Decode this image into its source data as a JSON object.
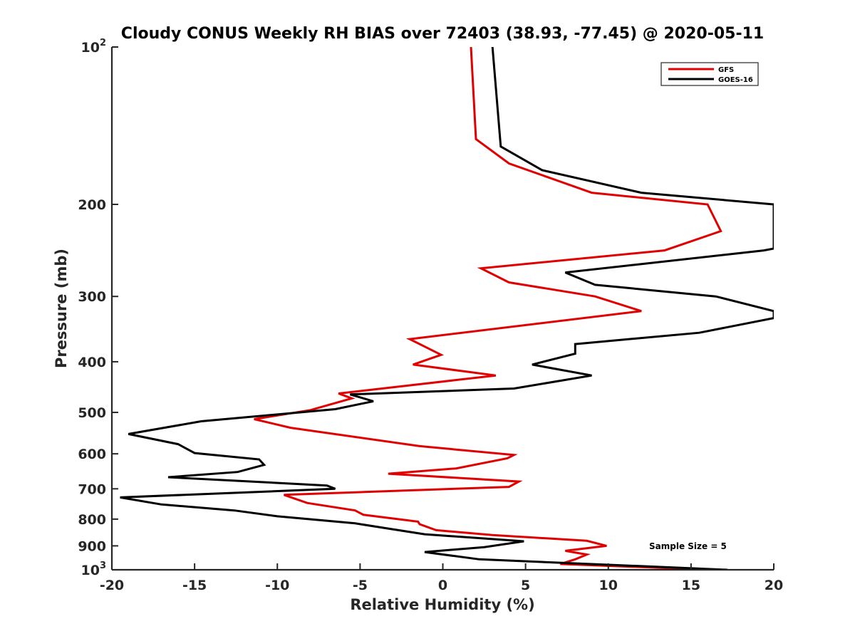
{
  "chart_data": {
    "type": "line",
    "title": "Cloudy CONUS Weekly RH BIAS over 72403 (38.93, -77.45) @ 2020-05-11",
    "xlabel": "Relative Humidity (%)",
    "ylabel": "Pressure (mb)",
    "xlim": [
      -20,
      20
    ],
    "ylim": [
      100,
      1000
    ],
    "y_scale": "log",
    "y_reversed": true,
    "grid": false,
    "legend_position": "top-right",
    "x_ticks": [
      "-20",
      "-15",
      "-10",
      "-5",
      "0",
      "5",
      "10",
      "15",
      "20"
    ],
    "y_ticks": [
      {
        "base": "10",
        "exp": "2"
      },
      {
        "base": "200",
        "exp": ""
      },
      {
        "base": "300",
        "exp": ""
      },
      {
        "base": "400",
        "exp": ""
      },
      {
        "base": "500",
        "exp": ""
      },
      {
        "base": "600",
        "exp": ""
      },
      {
        "base": "700",
        "exp": ""
      },
      {
        "base": "800",
        "exp": ""
      },
      {
        "base": "900",
        "exp": ""
      },
      {
        "base": "10",
        "exp": "3"
      }
    ],
    "annotation": "Sample Size = 5",
    "series": [
      {
        "name": "GFS",
        "color": "#e00000",
        "points": [
          [
            1.7,
            100
          ],
          [
            2.0,
            150
          ],
          [
            4.0,
            167
          ],
          [
            9.0,
            190
          ],
          [
            16.0,
            200
          ],
          [
            16.8,
            225
          ],
          [
            13.4,
            245
          ],
          [
            2.3,
            265
          ],
          [
            4.0,
            282
          ],
          [
            9.2,
            300
          ],
          [
            12.0,
            320
          ],
          [
            -2.0,
            362
          ],
          [
            -0.1,
            388
          ],
          [
            -1.8,
            405
          ],
          [
            3.2,
            425
          ],
          [
            -6.3,
            460
          ],
          [
            -5.5,
            470
          ],
          [
            -8.0,
            495
          ],
          [
            -11.4,
            515
          ],
          [
            -9.2,
            535
          ],
          [
            -1.4,
            580
          ],
          [
            4.3,
            603
          ],
          [
            3.9,
            612
          ],
          [
            0.8,
            640
          ],
          [
            -3.3,
            655
          ],
          [
            4.6,
            678
          ],
          [
            4.0,
            694
          ],
          [
            -9.6,
            719
          ],
          [
            -8.2,
            745
          ],
          [
            -5.3,
            770
          ],
          [
            -4.8,
            785
          ],
          [
            -1.5,
            809
          ],
          [
            -1.4,
            818
          ],
          [
            -0.4,
            840
          ],
          [
            3.0,
            858
          ],
          [
            8.7,
            880
          ],
          [
            9.9,
            900
          ],
          [
            7.4,
            920
          ],
          [
            8.7,
            935
          ],
          [
            8.0,
            955
          ],
          [
            7.1,
            975
          ],
          [
            16.3,
            1000
          ]
        ]
      },
      {
        "name": "GOES-16",
        "color": "#000000",
        "points": [
          [
            3.0,
            100
          ],
          [
            3.5,
            155
          ],
          [
            6.0,
            172
          ],
          [
            12.0,
            190
          ],
          [
            20.0,
            200
          ],
          [
            20.0,
            243
          ],
          [
            19.4,
            245
          ],
          [
            7.4,
            270
          ],
          [
            9.2,
            285
          ],
          [
            16.5,
            300
          ],
          [
            20.0,
            320
          ],
          [
            20.0,
            330
          ],
          [
            15.5,
            352
          ],
          [
            8.0,
            370
          ],
          [
            8.0,
            386
          ],
          [
            5.4,
            405
          ],
          [
            9.0,
            425
          ],
          [
            4.3,
            450
          ],
          [
            -5.6,
            462
          ],
          [
            -4.2,
            476
          ],
          [
            -6.5,
            493
          ],
          [
            -14.6,
            520
          ],
          [
            -19.0,
            550
          ],
          [
            -16.0,
            575
          ],
          [
            -15.0,
            598
          ],
          [
            -11.1,
            615
          ],
          [
            -10.8,
            630
          ],
          [
            -12.4,
            650
          ],
          [
            -16.6,
            665
          ],
          [
            -7.0,
            690
          ],
          [
            -6.5,
            700
          ],
          [
            -19.5,
            727
          ],
          [
            -17.0,
            750
          ],
          [
            -12.6,
            770
          ],
          [
            -10.0,
            790
          ],
          [
            -5.3,
            815
          ],
          [
            -3.2,
            835
          ],
          [
            -1.1,
            855
          ],
          [
            4.9,
            882
          ],
          [
            2.5,
            905
          ],
          [
            -1.1,
            925
          ],
          [
            2.2,
            955
          ],
          [
            17.2,
            1000
          ]
        ]
      }
    ]
  }
}
